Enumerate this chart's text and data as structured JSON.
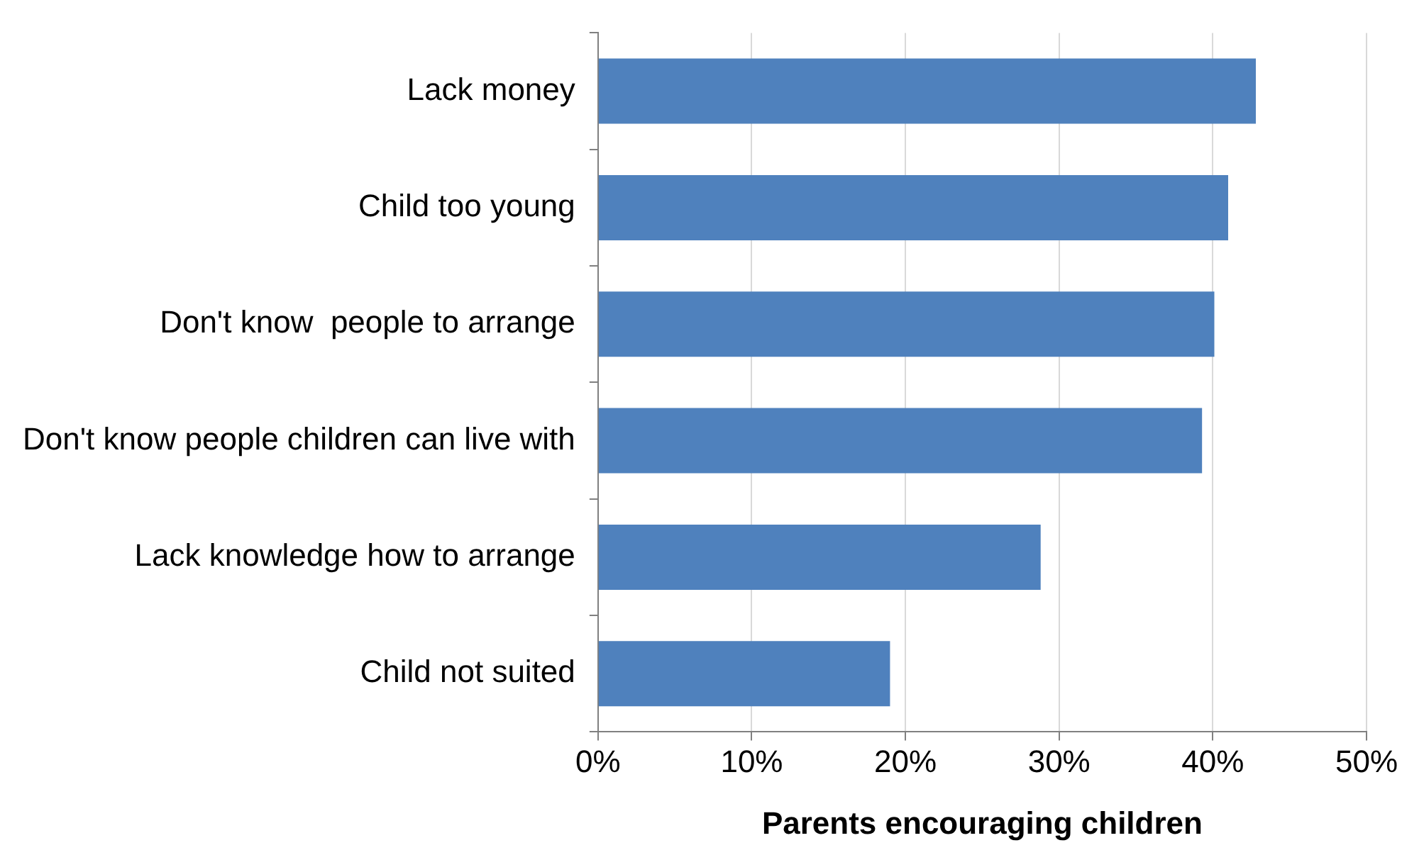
{
  "chart_data": {
    "type": "bar",
    "orientation": "horizontal",
    "xlabel": "Parents encouraging children",
    "categories": [
      "Lack money",
      "Child too young",
      "Don't know  people to arrange",
      "Don't know people children can live with",
      "Lack knowledge how to arrange",
      "Child not suited"
    ],
    "values": [
      42.8,
      41.0,
      40.1,
      39.3,
      28.8,
      19.0
    ],
    "color": "#4f81bd",
    "xlim": [
      0,
      50
    ],
    "xticks": [
      {
        "value": 0,
        "label": "0%"
      },
      {
        "value": 10,
        "label": "10%"
      },
      {
        "value": 20,
        "label": "20%"
      },
      {
        "value": 30,
        "label": "30%"
      },
      {
        "value": 40,
        "label": "40%"
      },
      {
        "value": 50,
        "label": "50%"
      }
    ],
    "grid": "x"
  }
}
